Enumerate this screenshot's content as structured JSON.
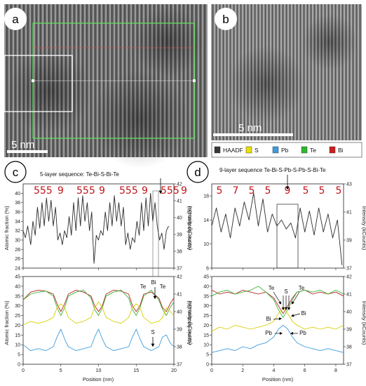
{
  "panels": {
    "a": {
      "label": "a",
      "scale_bar": "5 nm"
    },
    "b": {
      "label": "b",
      "scale_bar": "5 nm"
    },
    "c": {
      "label": "c",
      "title": "5-layer sequence: Te-Bi-S-Bi-Te"
    },
    "d": {
      "label": "d",
      "title": "9-layer sequence Te-Bi-S-Pb-S-Pb-S-Bi-Te"
    }
  },
  "legend": [
    {
      "name": "HAADF",
      "color": "#3a3a3a"
    },
    {
      "name": "S",
      "color": "#e8e000"
    },
    {
      "name": "Pb",
      "color": "#3e9bdc"
    },
    {
      "name": "Te",
      "color": "#2fb82f"
    },
    {
      "name": "Bi",
      "color": "#cc1f1f"
    }
  ],
  "colors": {
    "haadf": "#2b2b2b",
    "S": "#d8d000",
    "Pb": "#3e9bdc",
    "Te": "#39b539",
    "Bi": "#b5231f",
    "seq": "#c0141a"
  },
  "labels": {
    "xlabel": "Position (nm)",
    "ylabel_left": "Atomic fraction (%)",
    "ylabel_right": "Intensity (kCounts)"
  },
  "chart_data": [
    {
      "id": "c-top",
      "type": "line",
      "xlim": [
        0,
        20
      ],
      "xticks": [
        0,
        5,
        10,
        15,
        20
      ],
      "ylim_left": [
        24,
        42
      ],
      "yticks_left": [
        24,
        26,
        28,
        30,
        32,
        34,
        36,
        38,
        40
      ],
      "ylim_right": [
        37,
        42
      ],
      "yticks_right": [
        37,
        38,
        39,
        40,
        41,
        42
      ],
      "sequence_labels": [
        "555",
        "9",
        "555",
        "9",
        "555",
        "9",
        "555",
        "9"
      ],
      "series": [
        {
          "color": "#2b2b2b",
          "x": [
            0,
            0.3,
            0.6,
            1.0,
            1.3,
            1.6,
            1.9,
            2.2,
            2.5,
            2.8,
            3.1,
            3.4,
            3.7,
            4.0,
            4.3,
            4.6,
            4.9,
            5.2,
            5.5,
            5.8,
            6.1,
            6.4,
            6.7,
            7.0,
            7.3,
            7.6,
            7.9,
            8.2,
            8.5,
            8.8,
            9.1,
            9.4,
            9.7,
            10.0,
            10.3,
            10.6,
            10.9,
            11.2,
            11.5,
            11.8,
            12.1,
            12.4,
            12.7,
            13.0,
            13.3,
            13.6,
            13.9,
            14.2,
            14.5,
            14.8,
            15.1,
            15.4,
            15.7,
            16.0,
            16.3,
            16.6,
            16.9,
            17.2,
            17.5,
            17.8,
            18.1,
            18.4,
            18.7,
            19.0,
            19.3
          ],
          "y": [
            32,
            30.5,
            33,
            29,
            34,
            31,
            37,
            32.5,
            38,
            33,
            39,
            34,
            38.5,
            33,
            37,
            30,
            31.5,
            29,
            32,
            30.5,
            35,
            31,
            38,
            32,
            39,
            33,
            39.5,
            34,
            38,
            32,
            36,
            25,
            31,
            30,
            32,
            31,
            36,
            32,
            38,
            33,
            39.5,
            34,
            38,
            33,
            37,
            29,
            31.5,
            28,
            30.5,
            29.5,
            34,
            31,
            38,
            32,
            39,
            33,
            40,
            34,
            38,
            33,
            30,
            31.5,
            28,
            32,
            33
          ]
        }
      ]
    },
    {
      "id": "c-bottom",
      "type": "line",
      "xlim": [
        0,
        20
      ],
      "xticks": [
        0,
        5,
        10,
        15,
        20
      ],
      "ylim_left": [
        0,
        45
      ],
      "yticks_left": [
        0,
        5,
        10,
        15,
        20,
        25,
        30,
        35,
        40,
        45
      ],
      "ylim_right": [
        37,
        42
      ],
      "yticks_right": [
        37,
        38,
        39,
        40,
        41,
        42
      ],
      "annotations": [
        "Te",
        "Bi",
        "Te",
        "S"
      ],
      "series": [
        {
          "name": "Bi",
          "color": "#b5231f",
          "x": [
            0,
            1,
            2,
            3,
            4,
            4.5,
            5,
            5.5,
            6,
            7,
            8,
            9,
            9.5,
            10,
            10.5,
            11,
            12,
            13,
            14,
            14.5,
            15,
            15.5,
            16,
            17,
            18,
            18.5,
            19,
            19.5,
            20
          ],
          "y": [
            33,
            37,
            38,
            37.5,
            36,
            31,
            27,
            31,
            36,
            38,
            37,
            35,
            30,
            27,
            30,
            36,
            38,
            37.5,
            36,
            30,
            27,
            30,
            36,
            37,
            34,
            29,
            27,
            31,
            34
          ]
        },
        {
          "name": "Te",
          "color": "#39b539",
          "x": [
            0,
            1,
            2,
            3,
            4,
            4.5,
            5,
            5.5,
            6,
            7,
            8,
            9,
            9.5,
            10,
            10.5,
            11,
            12,
            13,
            14,
            14.5,
            15,
            15.5,
            16,
            17,
            18,
            18.5,
            19,
            19.5,
            20
          ],
          "y": [
            33,
            36,
            37,
            37.5,
            35,
            29,
            25,
            29,
            35,
            37,
            38,
            34,
            28,
            25,
            29,
            35,
            37,
            38,
            34,
            28,
            25,
            29,
            35,
            38,
            33,
            28,
            25,
            29,
            32
          ]
        },
        {
          "name": "S",
          "color": "#d8d000",
          "x": [
            0,
            1,
            2,
            3,
            4,
            4.5,
            5,
            5.5,
            6,
            7,
            8,
            9,
            9.5,
            10,
            10.5,
            11,
            12,
            13,
            14,
            14.5,
            15,
            15.5,
            16,
            17,
            18,
            18.5,
            19,
            19.5,
            20
          ],
          "y": [
            20,
            22,
            21,
            22,
            24,
            29,
            31,
            29,
            24,
            21,
            22,
            24,
            29,
            32,
            29,
            24,
            22,
            21,
            24,
            29,
            31,
            29,
            24,
            21,
            22,
            24,
            29,
            27,
            25
          ]
        },
        {
          "name": "Pb",
          "color": "#3e9bdc",
          "x": [
            0,
            1,
            2,
            3,
            4,
            4.5,
            5,
            5.5,
            6,
            7,
            8,
            9,
            9.5,
            10,
            10.5,
            11,
            12,
            13,
            14,
            14.5,
            15,
            15.5,
            16,
            17,
            18,
            18.5,
            19,
            19.5,
            20
          ],
          "y": [
            10,
            7,
            8,
            7,
            9,
            14,
            18,
            13,
            9,
            7,
            8,
            9,
            14,
            18,
            13,
            9,
            7,
            8,
            9,
            14,
            18,
            13,
            9,
            7,
            9,
            14,
            15,
            11,
            9
          ]
        }
      ]
    },
    {
      "id": "d-top",
      "type": "line",
      "xlim": [
        0,
        8.5
      ],
      "xticks": [
        0,
        2,
        4,
        6,
        8
      ],
      "ylim_left": [
        6,
        20
      ],
      "yticks_left": [
        6,
        10,
        14,
        18
      ],
      "ylim_right": [
        37,
        43
      ],
      "yticks_right": [
        37,
        39,
        41,
        43
      ],
      "sequence_labels": [
        "5",
        "7",
        "5",
        "5",
        "9",
        "5",
        "5",
        "5"
      ],
      "series": [
        {
          "color": "#2b2b2b",
          "x": [
            0,
            0.3,
            0.6,
            0.9,
            1.2,
            1.5,
            1.8,
            2.1,
            2.4,
            2.7,
            3.0,
            3.3,
            3.6,
            3.9,
            4.2,
            4.5,
            4.8,
            5.1,
            5.4,
            5.7,
            6.0,
            6.3,
            6.6,
            6.9,
            7.2,
            7.5,
            7.8,
            8.1,
            8.4
          ],
          "y": [
            13,
            16,
            12,
            15,
            11,
            16,
            13,
            17,
            14,
            18.5,
            13,
            17.5,
            12,
            15,
            13,
            14,
            12.5,
            13.5,
            11,
            16,
            12,
            15.5,
            11.5,
            16,
            12,
            15,
            11,
            14,
            6.5
          ]
        }
      ]
    },
    {
      "id": "d-bottom",
      "type": "line",
      "xlim": [
        0,
        8.5
      ],
      "xticks": [
        0,
        2,
        4,
        6,
        8
      ],
      "ylim_left": [
        0,
        45
      ],
      "yticks_left": [
        0,
        5,
        10,
        15,
        20,
        25,
        30,
        35,
        40,
        45
      ],
      "ylim_right": [
        37,
        42
      ],
      "yticks_right": [
        37,
        38,
        39,
        40,
        41,
        42
      ],
      "annotations": [
        "Te",
        "S",
        "Te",
        "Bi",
        "Bi",
        "Pb",
        "Pb"
      ],
      "series": [
        {
          "name": "Bi",
          "color": "#b5231f",
          "x": [
            0,
            0.5,
            1,
            1.5,
            2,
            2.5,
            3,
            3.5,
            4,
            4.3,
            4.6,
            4.9,
            5.2,
            5.5,
            6,
            6.5,
            7,
            7.5,
            8,
            8.5
          ],
          "y": [
            38,
            36,
            37,
            36,
            38,
            37,
            36,
            37,
            34,
            30,
            26,
            30,
            34,
            37,
            38,
            36,
            37,
            36,
            37,
            35
          ]
        },
        {
          "name": "Te",
          "color": "#39b539",
          "x": [
            0,
            0.5,
            1,
            1.5,
            2,
            2.5,
            3,
            3.5,
            4,
            4.3,
            4.6,
            4.9,
            5.2,
            5.5,
            6,
            6.5,
            7,
            7.5,
            8,
            8.5
          ],
          "y": [
            35,
            37,
            38,
            36,
            37,
            38,
            40,
            37,
            33,
            28,
            24,
            28,
            33,
            37,
            38,
            37,
            38,
            36,
            38,
            36
          ]
        },
        {
          "name": "S",
          "color": "#d8d000",
          "x": [
            0,
            0.5,
            1,
            1.5,
            2,
            2.5,
            3,
            3.5,
            4,
            4.3,
            4.6,
            4.9,
            5.2,
            5.5,
            6,
            6.5,
            7,
            7.5,
            8,
            8.5
          ],
          "y": [
            17,
            19,
            18,
            20,
            19,
            18,
            19,
            20,
            22,
            26,
            29,
            26,
            22,
            20,
            18,
            19,
            18,
            19,
            18,
            20
          ]
        },
        {
          "name": "Pb",
          "color": "#3e9bdc",
          "x": [
            0,
            0.5,
            1,
            1.5,
            2,
            2.5,
            3,
            3.5,
            4,
            4.3,
            4.6,
            4.9,
            5.2,
            5.5,
            6,
            6.5,
            7,
            7.5,
            8,
            8.5
          ],
          "y": [
            6,
            7,
            8,
            7,
            9,
            8,
            10,
            11,
            14,
            18,
            20,
            18,
            14,
            11,
            9,
            8,
            7,
            8,
            7,
            6
          ]
        }
      ]
    }
  ]
}
